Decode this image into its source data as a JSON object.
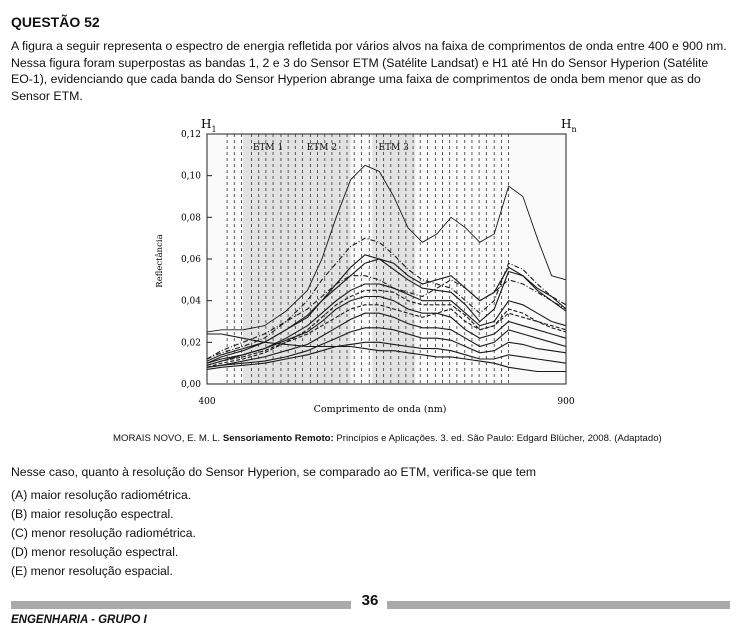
{
  "question": {
    "title": "QUESTÃO 52",
    "intro": "A figura a seguir representa o espectro de energia refletida por vários alvos na faixa de comprimentos de onda entre 400 e 900 nm. Nessa figura foram superpostas as bandas 1, 2 e 3 do Sensor ETM (Satélite Landsat) e H1 até Hn do Sensor Hyperion (Satélite EO-1), evidenciando que cada banda do Sensor Hyperion  abrange uma faixa de comprimentos de onda bem menor que as do Sensor ETM.",
    "stem": "Nesse caso, quanto à resolução do Sensor Hyperion, se comparado ao ETM, verifica-se que tem",
    "options": [
      "(A) maior resolução radiométrica.",
      "(B) maior resolução espectral.",
      "(C) menor resolução radiométrica.",
      "(D) menor resolução espectral.",
      "(E) menor resolução espacial."
    ]
  },
  "citation": {
    "author": "MORAIS NOVO, E. M. L.",
    "title": "Sensoriamento Remoto:",
    "rest": "Princípios e Aplicações. 3. ed. São Paulo: Edgard Blücher, 2008. (Adaptado)"
  },
  "footer": {
    "page": "36",
    "group": "ENGENHARIA - GRUPO I"
  },
  "chart_data": {
    "type": "line",
    "xlabel": "Comprimento de onda (nm)",
    "ylabel": "Reflectância",
    "xlim": [
      400,
      900
    ],
    "ylim": [
      0,
      0.12
    ],
    "x_ticks": [
      "400",
      "900"
    ],
    "y_ticks": [
      "0,00",
      "0,02",
      "0,04",
      "0,06",
      "0,08",
      "0,10",
      "0,12"
    ],
    "y_tick_values": [
      0,
      0.02,
      0.04,
      0.06,
      0.08,
      0.1,
      0.12
    ],
    "grid": false,
    "bands": [
      {
        "name": "ETM 1",
        "range": [
          450,
          520
        ]
      },
      {
        "name": "ETM 2",
        "range": [
          520,
          600
        ]
      },
      {
        "name": "ETM 3",
        "range": [
          630,
          690
        ]
      }
    ],
    "hyperion_labels": {
      "first": "H",
      "first_sub": "1",
      "last": "H",
      "last_sub": "n"
    },
    "hyperion_lines": [
      428,
      438,
      448,
      462,
      472,
      482,
      492,
      503,
      513,
      523,
      533,
      544,
      554,
      564,
      574,
      585,
      595,
      605,
      615,
      626,
      636,
      646,
      656,
      667,
      677,
      687,
      697,
      707,
      718,
      728,
      738,
      748,
      759,
      769,
      779,
      789,
      800,
      810,
      820
    ],
    "x": [
      400,
      420,
      450,
      480,
      510,
      540,
      560,
      580,
      600,
      620,
      640,
      660,
      680,
      700,
      720,
      740,
      760,
      780,
      800,
      820,
      840,
      860,
      880,
      900
    ],
    "series": [
      {
        "values": [
          0.025,
          0.026,
          0.026,
          0.028,
          0.035,
          0.045,
          0.06,
          0.08,
          0.098,
          0.105,
          0.102,
          0.09,
          0.075,
          0.068,
          0.072,
          0.08,
          0.075,
          0.068,
          0.072,
          0.095,
          0.09,
          0.07,
          0.052,
          0.05
        ],
        "dash": "solid"
      },
      {
        "values": [
          0.01,
          0.013,
          0.016,
          0.02,
          0.026,
          0.033,
          0.04,
          0.048,
          0.056,
          0.062,
          0.06,
          0.055,
          0.05,
          0.046,
          0.045,
          0.044,
          0.038,
          0.03,
          0.036,
          0.054,
          0.052,
          0.045,
          0.04,
          0.035
        ],
        "dash": "solid"
      },
      {
        "values": [
          0.012,
          0.015,
          0.018,
          0.022,
          0.03,
          0.04,
          0.05,
          0.058,
          0.066,
          0.07,
          0.068,
          0.062,
          0.055,
          0.05,
          0.048,
          0.046,
          0.04,
          0.034,
          0.04,
          0.058,
          0.055,
          0.048,
          0.042,
          0.038
        ],
        "dash": "dashdot"
      },
      {
        "values": [
          0.011,
          0.014,
          0.017,
          0.02,
          0.026,
          0.032,
          0.04,
          0.046,
          0.052,
          0.058,
          0.06,
          0.058,
          0.052,
          0.048,
          0.05,
          0.052,
          0.046,
          0.04,
          0.044,
          0.056,
          0.052,
          0.046,
          0.042,
          0.036
        ],
        "dash": "solid"
      },
      {
        "values": [
          0.009,
          0.011,
          0.014,
          0.017,
          0.022,
          0.028,
          0.034,
          0.04,
          0.045,
          0.048,
          0.048,
          0.046,
          0.043,
          0.04,
          0.04,
          0.04,
          0.034,
          0.028,
          0.03,
          0.04,
          0.038,
          0.034,
          0.03,
          0.028
        ],
        "dash": "solid"
      },
      {
        "values": [
          0.008,
          0.01,
          0.012,
          0.015,
          0.02,
          0.026,
          0.032,
          0.038,
          0.042,
          0.045,
          0.045,
          0.044,
          0.04,
          0.038,
          0.038,
          0.038,
          0.033,
          0.026,
          0.028,
          0.036,
          0.034,
          0.03,
          0.027,
          0.025
        ],
        "dash": "dashed"
      },
      {
        "values": [
          0.01,
          0.012,
          0.014,
          0.017,
          0.021,
          0.025,
          0.03,
          0.036,
          0.04,
          0.042,
          0.042,
          0.04,
          0.036,
          0.034,
          0.034,
          0.032,
          0.026,
          0.022,
          0.024,
          0.03,
          0.028,
          0.026,
          0.024,
          0.022
        ],
        "dash": "solid"
      },
      {
        "values": [
          0.008,
          0.009,
          0.011,
          0.013,
          0.016,
          0.019,
          0.023,
          0.027,
          0.031,
          0.034,
          0.034,
          0.032,
          0.029,
          0.027,
          0.027,
          0.026,
          0.022,
          0.018,
          0.02,
          0.026,
          0.024,
          0.022,
          0.02,
          0.018
        ],
        "dash": "solid"
      },
      {
        "values": [
          0.008,
          0.009,
          0.01,
          0.011,
          0.013,
          0.016,
          0.019,
          0.022,
          0.025,
          0.027,
          0.027,
          0.026,
          0.024,
          0.022,
          0.022,
          0.021,
          0.018,
          0.015,
          0.016,
          0.02,
          0.019,
          0.017,
          0.016,
          0.015
        ],
        "dash": "solid"
      },
      {
        "values": [
          0.012,
          0.016,
          0.02,
          0.024,
          0.03,
          0.036,
          0.042,
          0.048,
          0.052,
          0.052,
          0.05,
          0.046,
          0.044,
          0.042,
          0.046,
          0.05,
          0.046,
          0.04,
          0.044,
          0.05,
          0.048,
          0.044,
          0.04,
          0.036
        ],
        "dash": "dashdot"
      },
      {
        "values": [
          0.009,
          0.011,
          0.013,
          0.016,
          0.02,
          0.024,
          0.028,
          0.032,
          0.036,
          0.038,
          0.038,
          0.036,
          0.034,
          0.032,
          0.034,
          0.036,
          0.03,
          0.026,
          0.028,
          0.034,
          0.032,
          0.03,
          0.028,
          0.026
        ],
        "dash": "dashed"
      },
      {
        "values": [
          0.024,
          0.024,
          0.022,
          0.02,
          0.019,
          0.018,
          0.018,
          0.018,
          0.018,
          0.017,
          0.016,
          0.016,
          0.015,
          0.014,
          0.013,
          0.013,
          0.012,
          0.011,
          0.01,
          0.008,
          0.007,
          0.006,
          0.006,
          0.006
        ],
        "dash": "solid"
      },
      {
        "values": [
          0.007,
          0.008,
          0.009,
          0.01,
          0.012,
          0.014,
          0.016,
          0.018,
          0.019,
          0.02,
          0.02,
          0.019,
          0.018,
          0.017,
          0.017,
          0.016,
          0.014,
          0.012,
          0.012,
          0.014,
          0.013,
          0.012,
          0.011,
          0.01
        ],
        "dash": "solid"
      }
    ]
  }
}
